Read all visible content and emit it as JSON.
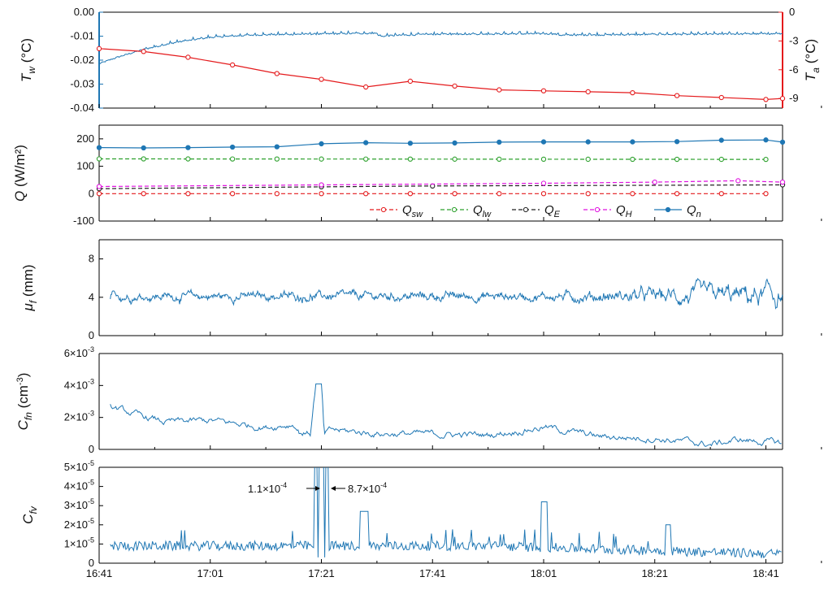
{
  "x_axis": {
    "ticks": [
      "16:41",
      "17:01",
      "17:21",
      "17:41",
      "18:01",
      "18:21",
      "18:41"
    ],
    "tick_minutes": [
      0,
      20,
      40,
      60,
      80,
      100,
      120
    ],
    "range_minutes": [
      0,
      123
    ]
  },
  "colors": {
    "blue": "#1f77b4",
    "red": "#e41a1c",
    "green": "#2ca02c",
    "black": "#222222",
    "magenta": "#e010e0",
    "axis_left_1": "#1f77b4",
    "axis_right_1": "#e41a1c"
  },
  "chart_data": [
    {
      "type": "line",
      "panel": "Tw-Ta",
      "ylabel_left": {
        "base": "T",
        "sub": "w",
        "unit": " (°C)"
      },
      "ylabel_right": {
        "base": "T",
        "sub": "a",
        "unit": " (°C)"
      },
      "ylim_left": [
        -0.04,
        0.0
      ],
      "ylim_right": [
        -10,
        0
      ],
      "yticks_left": [
        "0.00",
        "-0.01",
        "-0.02",
        "-0.03",
        "-0.04"
      ],
      "yticks_left_vals": [
        0.0,
        -0.01,
        -0.02,
        -0.03,
        -0.04
      ],
      "yticks_right": [
        "0",
        "-3",
        "-6",
        "-9"
      ],
      "yticks_right_vals": [
        0,
        -3,
        -6,
        -9
      ],
      "series": [
        {
          "axis": "left",
          "color": "blue",
          "approx": [
            [
              0,
              -0.0215
            ],
            [
              3,
              -0.019
            ],
            [
              8,
              -0.0155
            ],
            [
              14,
              -0.0125
            ],
            [
              20,
              -0.0105
            ],
            [
              28,
              -0.0095
            ],
            [
              42,
              -0.009
            ],
            [
              50,
              -0.0088
            ],
            [
              50.5,
              -0.0102
            ],
            [
              52,
              -0.0098
            ],
            [
              60,
              -0.0092
            ],
            [
              80,
              -0.009
            ],
            [
              82,
              -0.0091
            ],
            [
              83,
              -0.0096
            ],
            [
              100,
              -0.0093
            ],
            [
              123,
              -0.009
            ]
          ]
        },
        {
          "axis": "right",
          "color": "red",
          "marker": "circle-open",
          "x": [
            0,
            8,
            16,
            24,
            32,
            40,
            48,
            56,
            64,
            72,
            80,
            88,
            96,
            104,
            112,
            120,
            123
          ],
          "y": [
            -3.8,
            -4.1,
            -4.7,
            -5.5,
            -6.4,
            -7.0,
            -7.8,
            -7.2,
            -7.7,
            -8.1,
            -8.2,
            -8.3,
            -8.4,
            -8.7,
            -8.9,
            -9.1,
            -9.0
          ]
        }
      ]
    },
    {
      "type": "line",
      "panel": "Q",
      "ylabel": {
        "base": "Q",
        "unit": " (W/m²)"
      },
      "ylim": [
        -100,
        250
      ],
      "yticks": [
        "200",
        "100",
        "0",
        "-100"
      ],
      "yticks_vals": [
        200,
        100,
        0,
        -100
      ],
      "series": [
        {
          "name": "Q_sw",
          "base": "Q",
          "sub": "sw",
          "color": "red",
          "style": "dashed",
          "marker": "circle-open",
          "x": [
            0,
            123
          ],
          "y": [
            0,
            0
          ]
        },
        {
          "name": "Q_lw",
          "base": "Q",
          "sub": "lw",
          "color": "green",
          "style": "dashed",
          "marker": "circle-open",
          "x": [
            0,
            123
          ],
          "y": [
            127,
            125
          ]
        },
        {
          "name": "Q_E",
          "base": "Q",
          "sub": "E",
          "color": "black",
          "style": "dashed",
          "marker": "circle-open",
          "x": [
            0,
            40,
            60,
            123
          ],
          "y": [
            18,
            25,
            28,
            32
          ]
        },
        {
          "name": "Q_H",
          "base": "Q",
          "sub": "H",
          "color": "magenta",
          "style": "dashed",
          "marker": "circle-open",
          "x": [
            0,
            40,
            80,
            100,
            115,
            123
          ],
          "y": [
            26,
            32,
            38,
            42,
            47,
            42
          ]
        },
        {
          "name": "Q_n",
          "base": "Q",
          "sub": "n",
          "color": "blue",
          "style": "solid",
          "marker": "circle-filled",
          "x": [
            0,
            8,
            16,
            24,
            32,
            40,
            48,
            56,
            64,
            72,
            80,
            88,
            96,
            104,
            112,
            120,
            123
          ],
          "y": [
            168,
            167,
            168,
            170,
            171,
            182,
            186,
            184,
            185,
            188,
            189,
            189,
            189,
            190,
            195,
            196,
            188
          ]
        }
      ]
    },
    {
      "type": "line",
      "panel": "mu_f",
      "ylabel": {
        "base": "μ",
        "sub": "f",
        "unit": " (mm)"
      },
      "ylim": [
        0,
        10
      ],
      "yticks": [
        "8",
        "4",
        "0"
      ],
      "yticks_vals": [
        8,
        4,
        0
      ],
      "series": [
        {
          "color": "blue",
          "approx": {
            "mean": 4.1,
            "noise": 0.7
          }
        }
      ]
    },
    {
      "type": "line",
      "panel": "C_fn",
      "ylabel": {
        "base": "C",
        "sub": "fn",
        "unit": " (cm",
        "unit_sup": "-3",
        "unit_end": ")"
      },
      "ylim": [
        0,
        0.006
      ],
      "yticks": [
        {
          "m": "6",
          "e": "-3"
        },
        {
          "m": "4",
          "e": "-3"
        },
        {
          "m": "2",
          "e": "-3"
        },
        {
          "m": "0",
          "e": ""
        }
      ],
      "yticks_vals": [
        0.006,
        0.004,
        0.002,
        0
      ],
      "series": [
        {
          "color": "blue",
          "approx": [
            [
              0,
              0.0017
            ],
            [
              2,
              0.0027
            ],
            [
              6,
              0.0022
            ],
            [
              12,
              0.0017
            ],
            [
              20,
              0.0018
            ],
            [
              30,
              0.0014
            ],
            [
              35,
              0.0016
            ],
            [
              36,
              0.0011
            ],
            [
              38,
              0.001
            ],
            [
              39,
              0.0041
            ],
            [
              40,
              0.0041
            ],
            [
              40.5,
              0.0009
            ],
            [
              42,
              0.0012
            ],
            [
              50,
              0.001
            ],
            [
              70,
              0.0009
            ],
            [
              80,
              0.0014
            ],
            [
              90,
              0.0008
            ],
            [
              100,
              0.0007
            ],
            [
              110,
              0.0003
            ],
            [
              115,
              0.0006
            ],
            [
              123,
              0.0004
            ]
          ]
        }
      ]
    },
    {
      "type": "line",
      "panel": "C_fv",
      "ylabel": {
        "base": "C",
        "sub": "fv",
        "unit": ""
      },
      "ylim": [
        0,
        5e-05
      ],
      "yticks": [
        {
          "m": "5",
          "e": "-5"
        },
        {
          "m": "4",
          "e": "-5"
        },
        {
          "m": "3",
          "e": "-5"
        },
        {
          "m": "2",
          "e": "-5"
        },
        {
          "m": "1",
          "e": "-5"
        },
        {
          "m": "0",
          "e": ""
        }
      ],
      "yticks_vals": [
        5e-05,
        4e-05,
        3e-05,
        2e-05,
        1e-05,
        0
      ],
      "annotations": [
        {
          "m": "1.1",
          "e": "-4",
          "arrow": "right"
        },
        {
          "m": "8.7",
          "e": "-4",
          "arrow": "left"
        }
      ],
      "series": [
        {
          "color": "blue",
          "approx": "noisy ~1e-5 with spikes at 17:21 (off scale), 17:28, 17:59, 18:21"
        }
      ]
    }
  ]
}
